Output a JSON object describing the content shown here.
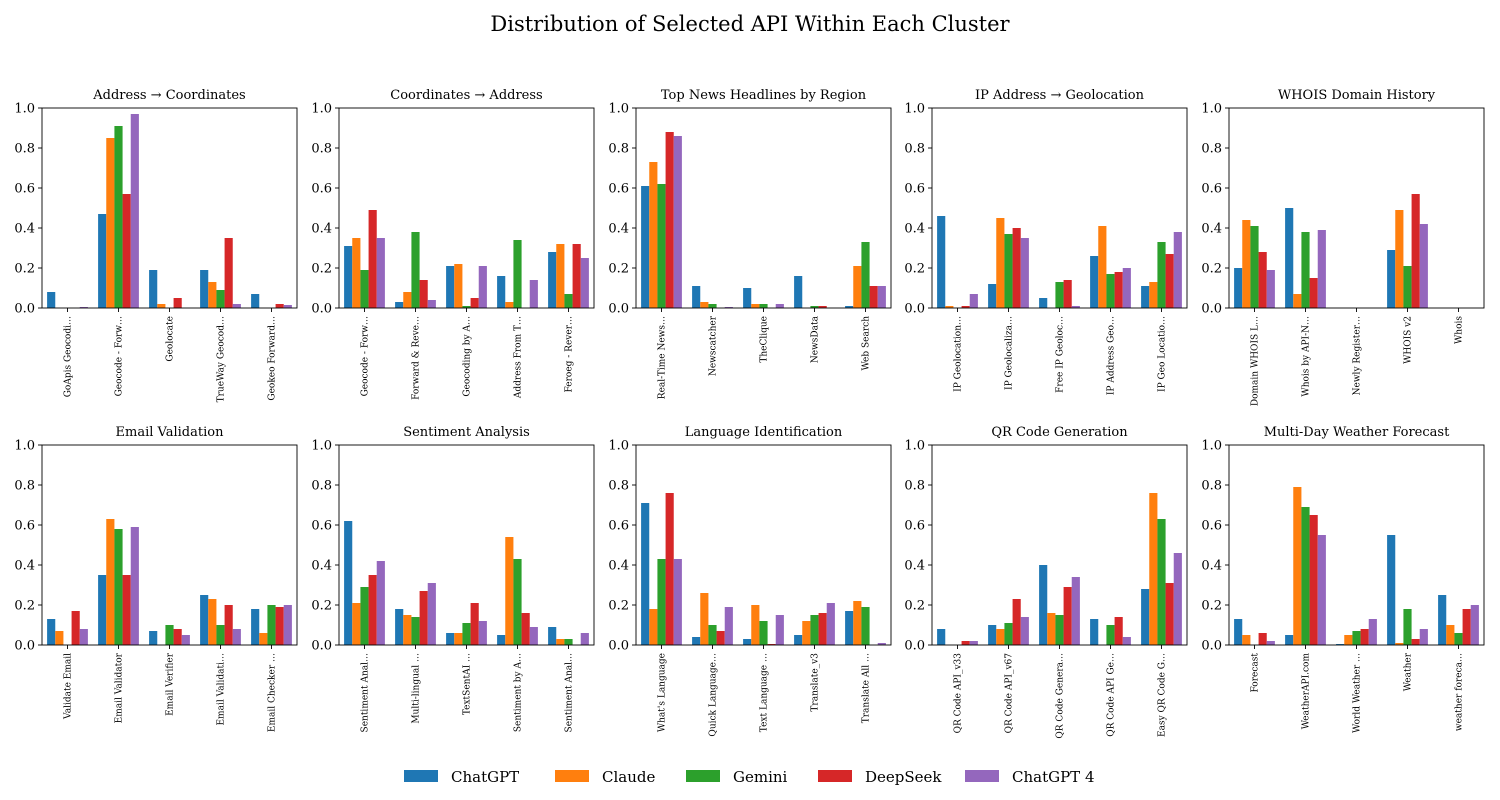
{
  "title": "Distribution of Selected API Within Each Cluster",
  "colors": [
    "#1f77b4",
    "#ff7f0e",
    "#2ca02c",
    "#d62728",
    "#9467bd"
  ],
  "legend": [
    "ChatGPT",
    "Claude",
    "Gemini",
    "DeepSeek",
    "ChatGPT 4"
  ],
  "chart_data": [
    {
      "type": "bar",
      "title": "Address → Coordinates",
      "ylim": [
        0,
        1
      ],
      "yticks": [
        "0.0",
        "0.2",
        "0.4",
        "0.6",
        "0.8",
        "1.0"
      ],
      "categories": [
        "GoApis Geocodi…",
        "Geocode - Forw…",
        "Geolocate",
        "TrueWay Geocod…",
        "Geokeo Forward…"
      ],
      "series": [
        {
          "name": "ChatGPT",
          "values": [
            0.08,
            0.47,
            0.19,
            0.19,
            0.07
          ]
        },
        {
          "name": "Claude",
          "values": [
            0.0,
            0.85,
            0.02,
            0.13,
            0.0
          ]
        },
        {
          "name": "Gemini",
          "values": [
            0.0,
            0.91,
            0.0,
            0.09,
            0.0
          ]
        },
        {
          "name": "DeepSeek",
          "values": [
            0.0,
            0.57,
            0.05,
            0.35,
            0.02
          ]
        },
        {
          "name": "ChatGPT 4",
          "values": [
            0.005,
            0.97,
            0.0,
            0.02,
            0.015
          ]
        }
      ]
    },
    {
      "type": "bar",
      "title": "Coordinates → Address",
      "ylim": [
        0,
        1
      ],
      "yticks": [
        "0.0",
        "0.2",
        "0.4",
        "0.6",
        "0.8",
        "1.0"
      ],
      "categories": [
        "Geocode - Forw…",
        "Forward & Reve…",
        "Geocoding by A…",
        "Address From T…",
        "Feroeg - Rever…"
      ],
      "series": [
        {
          "name": "ChatGPT",
          "values": [
            0.31,
            0.03,
            0.21,
            0.16,
            0.28
          ]
        },
        {
          "name": "Claude",
          "values": [
            0.35,
            0.08,
            0.22,
            0.03,
            0.32
          ]
        },
        {
          "name": "Gemini",
          "values": [
            0.19,
            0.38,
            0.01,
            0.34,
            0.07
          ]
        },
        {
          "name": "DeepSeek",
          "values": [
            0.49,
            0.14,
            0.05,
            0.0,
            0.32
          ]
        },
        {
          "name": "ChatGPT 4",
          "values": [
            0.35,
            0.04,
            0.21,
            0.14,
            0.25
          ]
        }
      ]
    },
    {
      "type": "bar",
      "title": "Top News Headlines by Region",
      "ylim": [
        0,
        1
      ],
      "yticks": [
        "0.0",
        "0.2",
        "0.4",
        "0.6",
        "0.8",
        "1.0"
      ],
      "categories": [
        "Real-Time News…",
        "Newscatcher",
        "TheClique",
        "NewsData",
        "Web Search"
      ],
      "series": [
        {
          "name": "ChatGPT",
          "values": [
            0.61,
            0.11,
            0.1,
            0.16,
            0.01
          ]
        },
        {
          "name": "Claude",
          "values": [
            0.73,
            0.03,
            0.02,
            0.0,
            0.21
          ]
        },
        {
          "name": "Gemini",
          "values": [
            0.62,
            0.02,
            0.02,
            0.01,
            0.33
          ]
        },
        {
          "name": "DeepSeek",
          "values": [
            0.88,
            0.0,
            0.0,
            0.01,
            0.11
          ]
        },
        {
          "name": "ChatGPT 4",
          "values": [
            0.86,
            0.005,
            0.02,
            0.0,
            0.11
          ]
        }
      ]
    },
    {
      "type": "bar",
      "title": "IP Address → Geolocation",
      "ylim": [
        0,
        1
      ],
      "yticks": [
        "0.0",
        "0.2",
        "0.4",
        "0.6",
        "0.8",
        "1.0"
      ],
      "categories": [
        "IP Geolocation…",
        "IP Geolocaliza…",
        "Free IP Geoloc…",
        "IP Address Geo…",
        "IP Geo Locatio…"
      ],
      "series": [
        {
          "name": "ChatGPT",
          "values": [
            0.46,
            0.12,
            0.05,
            0.26,
            0.11
          ]
        },
        {
          "name": "Claude",
          "values": [
            0.01,
            0.45,
            0.0,
            0.41,
            0.13
          ]
        },
        {
          "name": "Gemini",
          "values": [
            0.0,
            0.37,
            0.13,
            0.17,
            0.33
          ]
        },
        {
          "name": "DeepSeek",
          "values": [
            0.01,
            0.4,
            0.14,
            0.18,
            0.27
          ]
        },
        {
          "name": "ChatGPT 4",
          "values": [
            0.07,
            0.35,
            0.01,
            0.2,
            0.38
          ]
        }
      ]
    },
    {
      "type": "bar",
      "title": "WHOIS Domain History",
      "ylim": [
        0,
        1
      ],
      "yticks": [
        "0.0",
        "0.2",
        "0.4",
        "0.6",
        "0.8",
        "1.0"
      ],
      "categories": [
        "Domain WHOIS L…",
        "Whois by API-N…",
        "Newly Register…",
        "WHOIS v2",
        "Whois"
      ],
      "series": [
        {
          "name": "ChatGPT",
          "values": [
            0.2,
            0.5,
            0.0,
            0.29,
            0.0
          ]
        },
        {
          "name": "Claude",
          "values": [
            0.44,
            0.07,
            0.0,
            0.49,
            0.0
          ]
        },
        {
          "name": "Gemini",
          "values": [
            0.41,
            0.38,
            0.0,
            0.21,
            0.0
          ]
        },
        {
          "name": "DeepSeek",
          "values": [
            0.28,
            0.15,
            0.0,
            0.57,
            0.0
          ]
        },
        {
          "name": "ChatGPT 4",
          "values": [
            0.19,
            0.39,
            0.0,
            0.42,
            0.0
          ]
        }
      ]
    },
    {
      "type": "bar",
      "title": "Email Validation",
      "ylim": [
        0,
        1
      ],
      "yticks": [
        "0.0",
        "0.2",
        "0.4",
        "0.6",
        "0.8",
        "1.0"
      ],
      "categories": [
        "Validate Email",
        "Email Validator",
        "Email Verifier",
        "Email Validati…",
        "Email Checker …"
      ],
      "series": [
        {
          "name": "ChatGPT",
          "values": [
            0.13,
            0.35,
            0.07,
            0.25,
            0.18
          ]
        },
        {
          "name": "Claude",
          "values": [
            0.07,
            0.63,
            0.0,
            0.23,
            0.06
          ]
        },
        {
          "name": "Gemini",
          "values": [
            0.0,
            0.58,
            0.1,
            0.1,
            0.2
          ]
        },
        {
          "name": "DeepSeek",
          "values": [
            0.17,
            0.35,
            0.08,
            0.2,
            0.19
          ]
        },
        {
          "name": "ChatGPT 4",
          "values": [
            0.08,
            0.59,
            0.05,
            0.08,
            0.2
          ]
        }
      ]
    },
    {
      "type": "bar",
      "title": "Sentiment Analysis",
      "ylim": [
        0,
        1
      ],
      "yticks": [
        "0.0",
        "0.2",
        "0.4",
        "0.6",
        "0.8",
        "1.0"
      ],
      "categories": [
        "Sentiment Anal…",
        "Multi-lingual …",
        "TextSentAI …",
        "Sentiment by A…",
        "Sentiment Anal…"
      ],
      "series": [
        {
          "name": "ChatGPT",
          "values": [
            0.62,
            0.18,
            0.06,
            0.05,
            0.09
          ]
        },
        {
          "name": "Claude",
          "values": [
            0.21,
            0.15,
            0.06,
            0.54,
            0.03
          ]
        },
        {
          "name": "Gemini",
          "values": [
            0.29,
            0.14,
            0.11,
            0.43,
            0.03
          ]
        },
        {
          "name": "DeepSeek",
          "values": [
            0.35,
            0.27,
            0.21,
            0.16,
            0.0
          ]
        },
        {
          "name": "ChatGPT 4",
          "values": [
            0.42,
            0.31,
            0.12,
            0.09,
            0.06
          ]
        }
      ]
    },
    {
      "type": "bar",
      "title": "Language Identification",
      "ylim": [
        0,
        1
      ],
      "yticks": [
        "0.0",
        "0.2",
        "0.4",
        "0.6",
        "0.8",
        "1.0"
      ],
      "categories": [
        "What's Language",
        "Quick Language…",
        "Text Language …",
        "Translate_v3",
        "Translate All …"
      ],
      "series": [
        {
          "name": "ChatGPT",
          "values": [
            0.71,
            0.04,
            0.03,
            0.05,
            0.17
          ]
        },
        {
          "name": "Claude",
          "values": [
            0.18,
            0.26,
            0.2,
            0.12,
            0.22
          ]
        },
        {
          "name": "Gemini",
          "values": [
            0.43,
            0.1,
            0.12,
            0.15,
            0.19
          ]
        },
        {
          "name": "DeepSeek",
          "values": [
            0.76,
            0.07,
            0.005,
            0.16,
            0.0
          ]
        },
        {
          "name": "ChatGPT 4",
          "values": [
            0.43,
            0.19,
            0.15,
            0.21,
            0.01
          ]
        }
      ]
    },
    {
      "type": "bar",
      "title": "QR Code Generation",
      "ylim": [
        0,
        1
      ],
      "yticks": [
        "0.0",
        "0.2",
        "0.4",
        "0.6",
        "0.8",
        "1.0"
      ],
      "categories": [
        "QR Code API_v33",
        "QR Code API_v67",
        "QR Code Genera…",
        "QR Code API Ge…",
        "Easy QR Code G…"
      ],
      "series": [
        {
          "name": "ChatGPT",
          "values": [
            0.08,
            0.1,
            0.4,
            0.13,
            0.28
          ]
        },
        {
          "name": "Claude",
          "values": [
            0.0,
            0.08,
            0.16,
            0.0,
            0.76
          ]
        },
        {
          "name": "Gemini",
          "values": [
            0.0,
            0.11,
            0.15,
            0.1,
            0.63
          ]
        },
        {
          "name": "DeepSeek",
          "values": [
            0.02,
            0.23,
            0.29,
            0.14,
            0.31
          ]
        },
        {
          "name": "ChatGPT 4",
          "values": [
            0.02,
            0.14,
            0.34,
            0.04,
            0.46
          ]
        }
      ]
    },
    {
      "type": "bar",
      "title": "Multi-Day Weather Forecast",
      "ylim": [
        0,
        1
      ],
      "yticks": [
        "0.0",
        "0.2",
        "0.4",
        "0.6",
        "0.8",
        "1.0"
      ],
      "categories": [
        "Forecast",
        "WeatherAPI.com",
        "World Weather …",
        "Weather",
        "weather foreca…"
      ],
      "series": [
        {
          "name": "ChatGPT",
          "values": [
            0.13,
            0.05,
            0.005,
            0.55,
            0.25
          ]
        },
        {
          "name": "Claude",
          "values": [
            0.05,
            0.79,
            0.05,
            0.01,
            0.1
          ]
        },
        {
          "name": "Gemini",
          "values": [
            0.0,
            0.69,
            0.07,
            0.18,
            0.06
          ]
        },
        {
          "name": "DeepSeek",
          "values": [
            0.06,
            0.65,
            0.08,
            0.03,
            0.18
          ]
        },
        {
          "name": "ChatGPT 4",
          "values": [
            0.02,
            0.55,
            0.13,
            0.08,
            0.2
          ]
        }
      ]
    }
  ]
}
